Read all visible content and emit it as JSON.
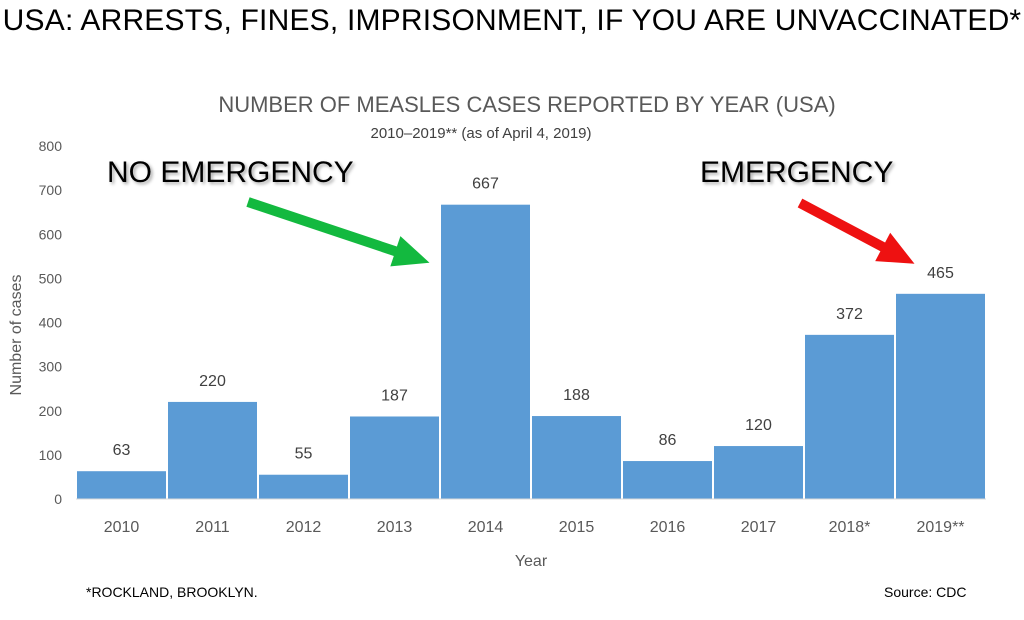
{
  "headline": "USA: ARRESTS, FINES, IMPRISONMENT, IF YOU ARE UNVACCINATED*",
  "footnote": "*ROCKLAND, BROOKLYN.",
  "source": "Source: CDC",
  "annotations": {
    "left_label": "NO EMERGENCY",
    "right_label": "EMERGENCY",
    "left_arrow_target": "2014",
    "right_arrow_target": "2019**"
  },
  "colors": {
    "bar": "#5b9bd5",
    "green_arrow": "#13b93f",
    "red_arrow": "#ee1111",
    "axis_text": "#595959"
  },
  "chart_data": {
    "type": "bar",
    "title": "NUMBER OF MEASLES CASES REPORTED BY YEAR (USA)",
    "subtitle": "2010–2019** (as of April 4, 2019)",
    "categories": [
      "2010",
      "2011",
      "2012",
      "2013",
      "2014",
      "2015",
      "2016",
      "2017",
      "2018*",
      "2019**"
    ],
    "values": [
      63,
      220,
      55,
      187,
      667,
      188,
      86,
      120,
      372,
      465
    ],
    "xlabel": "Year",
    "ylabel": "Number of cases",
    "ylim": [
      0,
      800
    ],
    "yticks": [
      0,
      100,
      200,
      300,
      400,
      500,
      600,
      700,
      800
    ],
    "grid": false
  }
}
